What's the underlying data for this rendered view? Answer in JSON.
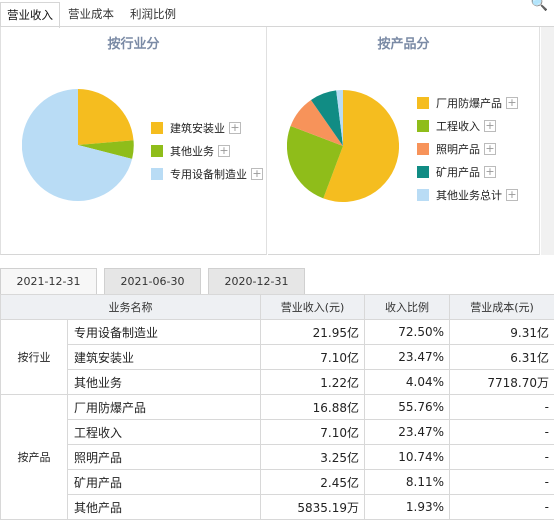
{
  "top_tabs": [
    "营业收入",
    "营业成本",
    "利润比例"
  ],
  "left_chart": {
    "title": "按行业分",
    "legend": [
      {
        "label": "建筑安装业",
        "color": "#f5bd1f"
      },
      {
        "label": "其他业务",
        "color": "#8fbd1a"
      },
      {
        "label": "专用设备制造业",
        "color": "#b9dcf5"
      }
    ]
  },
  "right_chart": {
    "title": "按产品分",
    "legend": [
      {
        "label": "厂用防爆产品",
        "color": "#f5bd1f"
      },
      {
        "label": "工程收入",
        "color": "#8fbd1a"
      },
      {
        "label": "照明产品",
        "color": "#f7935a"
      },
      {
        "label": "矿用产品",
        "color": "#118c84"
      },
      {
        "label": "其他业务总计",
        "color": "#b9dcf5"
      }
    ]
  },
  "plus_glyph": "+",
  "search_glyph": "🔍",
  "date_tabs": [
    "2021-12-31",
    "2021-06-30",
    "2020-12-31"
  ],
  "table": {
    "headers": [
      "业务名称",
      "营业收入(元)",
      "收入比例",
      "营业成本(元)"
    ],
    "groups": [
      {
        "category": "按行业",
        "rows": [
          {
            "name": "专用设备制造业",
            "revenue": "21.95亿",
            "ratio": "72.50%",
            "cost": "9.31亿"
          },
          {
            "name": "建筑安装业",
            "revenue": "7.10亿",
            "ratio": "23.47%",
            "cost": "6.31亿"
          },
          {
            "name": "其他业务",
            "revenue": "1.22亿",
            "ratio": "4.04%",
            "cost": "7718.70万"
          }
        ]
      },
      {
        "category": "按产品",
        "rows": [
          {
            "name": "厂用防爆产品",
            "revenue": "16.88亿",
            "ratio": "55.76%",
            "cost": "-"
          },
          {
            "name": "工程收入",
            "revenue": "7.10亿",
            "ratio": "23.47%",
            "cost": "-"
          },
          {
            "name": "照明产品",
            "revenue": "3.25亿",
            "ratio": "10.74%",
            "cost": "-"
          },
          {
            "name": "矿用产品",
            "revenue": "2.45亿",
            "ratio": "8.11%",
            "cost": "-"
          },
          {
            "name": "其他产品",
            "revenue": "5835.19万",
            "ratio": "1.93%",
            "cost": "-"
          }
        ]
      }
    ]
  }
}
